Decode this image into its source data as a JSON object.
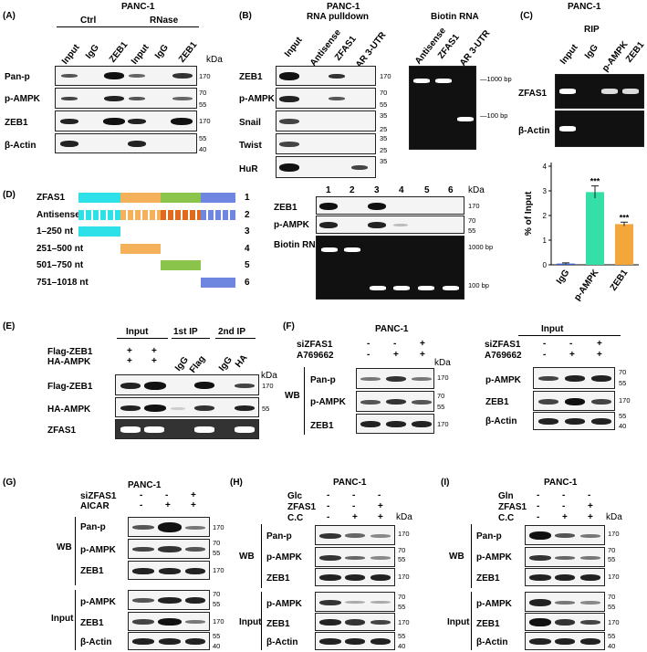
{
  "panelA": {
    "tag": "(A)",
    "title": "PANC-1",
    "group1": "Ctrl",
    "group2": "RNase",
    "lanes": [
      "Input",
      "IgG",
      "ZEB1",
      "Input",
      "IgG",
      "ZEB1"
    ],
    "rows": [
      "Pan-p",
      "p-AMPK",
      "ZEB1",
      "β-Actin"
    ],
    "mw": [
      "170",
      "70",
      "55",
      "170",
      "55",
      "40"
    ],
    "kda": "kDa"
  },
  "panelB": {
    "tag": "(B)",
    "title1": "PANC-1",
    "title2": "RNA pulldown",
    "title3": "Biotin RNA",
    "lanes": [
      "Input",
      "Antisense",
      "ZFAS1",
      "AR 3-UTR"
    ],
    "gel_lanes": [
      "Antisense",
      "ZFAS1",
      "AR 3-UTR"
    ],
    "rows": [
      "ZEB1",
      "p-AMPK",
      "Snail",
      "Twist",
      "HuR"
    ],
    "mw": [
      "170",
      "70",
      "55",
      "35",
      "25",
      "35",
      "25",
      "35"
    ],
    "bp1": "1000 bp",
    "bp2": "100 bp"
  },
  "panelC": {
    "tag": "(C)",
    "title": "PANC-1",
    "rip": "RIP",
    "lanes": [
      "Input",
      "IgG",
      "p-AMPK",
      "ZEB1"
    ],
    "rows": [
      "ZFAS1",
      "β-Actin"
    ],
    "chart_data": {
      "type": "bar",
      "categories": [
        "IgG",
        "p-AMPK",
        "ZEB1"
      ],
      "values": [
        0.05,
        2.95,
        1.65
      ],
      "errors": [
        0.03,
        0.25,
        0.08
      ],
      "sig": [
        "",
        "***",
        "***"
      ],
      "ylabel": "% of Input",
      "ylim": [
        0,
        4
      ],
      "yticks": [
        "0",
        "1",
        "2",
        "3",
        "4"
      ],
      "colors": [
        "#3a5fcd",
        "#35e0a8",
        "#f3a63a"
      ]
    }
  },
  "panelD": {
    "tag": "(D)",
    "constructs": [
      {
        "label": "ZFAS1",
        "num": "1"
      },
      {
        "label": "Antisense",
        "num": "2"
      },
      {
        "label": "1–250 nt",
        "num": "3"
      },
      {
        "label": "251–500 nt",
        "num": "4"
      },
      {
        "label": "501–750 nt",
        "num": "5"
      },
      {
        "label": "751–1018 nt",
        "num": "6"
      }
    ],
    "lanes": [
      "1",
      "2",
      "3",
      "4",
      "5",
      "6"
    ],
    "rows": [
      "ZEB1",
      "p-AMPK",
      "Biotin RNA"
    ],
    "mw": [
      "170",
      "70",
      "55",
      "1000 bp",
      "100 bp"
    ],
    "kda": "kDa"
  },
  "panelE": {
    "tag": "(E)",
    "groups": [
      "Input",
      "1st IP",
      "2nd IP"
    ],
    "subl": [
      "IgG",
      "Flag",
      "IgG",
      "HA"
    ],
    "cond": [
      "Flag-ZEB1",
      "HA-AMPK"
    ],
    "marks": [
      "+",
      "+",
      "+",
      "+"
    ],
    "rows": [
      "Flag-ZEB1",
      "HA-AMPK",
      "ZFAS1"
    ],
    "mw": [
      "170",
      "55"
    ],
    "kda": "kDa"
  },
  "panelF": {
    "tag": "(F)",
    "title": "PANC-1",
    "title2": "Input",
    "cond": [
      "siZFAS1",
      "A769662"
    ],
    "c1": [
      "-",
      "-",
      "+"
    ],
    "c2": [
      "-",
      "+",
      "+"
    ],
    "wb": "WB",
    "rows": [
      "Pan-p",
      "p-AMPK",
      "ZEB1"
    ],
    "rows2": [
      "p-AMPK",
      "ZEB1",
      "β-Actin"
    ],
    "mw": [
      "170",
      "70",
      "55",
      "170"
    ],
    "mw2": [
      "70",
      "55",
      "170",
      "55",
      "40"
    ],
    "kda": "kDa"
  },
  "panelG": {
    "tag": "(G)",
    "title": "PANC-1",
    "cond": [
      "siZFAS1",
      "AICAR"
    ],
    "c1": [
      "-",
      "-",
      "+"
    ],
    "c2": [
      "-",
      "+",
      "+"
    ],
    "wb": "WB",
    "input": "Input",
    "rows": [
      "Pan-p",
      "p-AMPK",
      "ZEB1"
    ],
    "rows2": [
      "p-AMPK",
      "ZEB1",
      "β-Actin"
    ],
    "mw": [
      "170",
      "70",
      "55",
      "170"
    ],
    "mw2": [
      "70",
      "55",
      "170",
      "55",
      "40"
    ]
  },
  "panelH": {
    "tag": "(H)",
    "title": "PANC-1",
    "cond": [
      "Glc",
      "ZFAS1",
      "C.C"
    ],
    "c1": [
      "-",
      "-",
      "-"
    ],
    "c2": [
      "-",
      "-",
      "+"
    ],
    "c3": [
      "-",
      "+",
      "+"
    ],
    "wb": "WB",
    "input": "Input",
    "rows": [
      "Pan-p",
      "p-AMPK",
      "ZEB1"
    ],
    "rows2": [
      "p-AMPK",
      "ZEB1",
      "β-Actin"
    ],
    "mw": [
      "170",
      "70",
      "55",
      "170"
    ],
    "mw2": [
      "70",
      "55",
      "170",
      "55",
      "40"
    ],
    "kda": "kDa"
  },
  "panelI": {
    "tag": "(I)",
    "title": "PANC-1",
    "cond": [
      "Gln",
      "ZFAS1",
      "C.C"
    ],
    "c1": [
      "-",
      "-",
      "-"
    ],
    "c2": [
      "-",
      "-",
      "+"
    ],
    "c3": [
      "-",
      "+",
      "+"
    ],
    "wb": "WB",
    "input": "Input",
    "rows": [
      "Pan-p",
      "p-AMPK",
      "ZEB1"
    ],
    "rows2": [
      "p-AMPK",
      "ZEB1",
      "β-Actin"
    ],
    "mw": [
      "170",
      "70",
      "55",
      "170"
    ],
    "mw2": [
      "70",
      "55",
      "170",
      "55",
      "40"
    ],
    "kda": "kDa"
  }
}
